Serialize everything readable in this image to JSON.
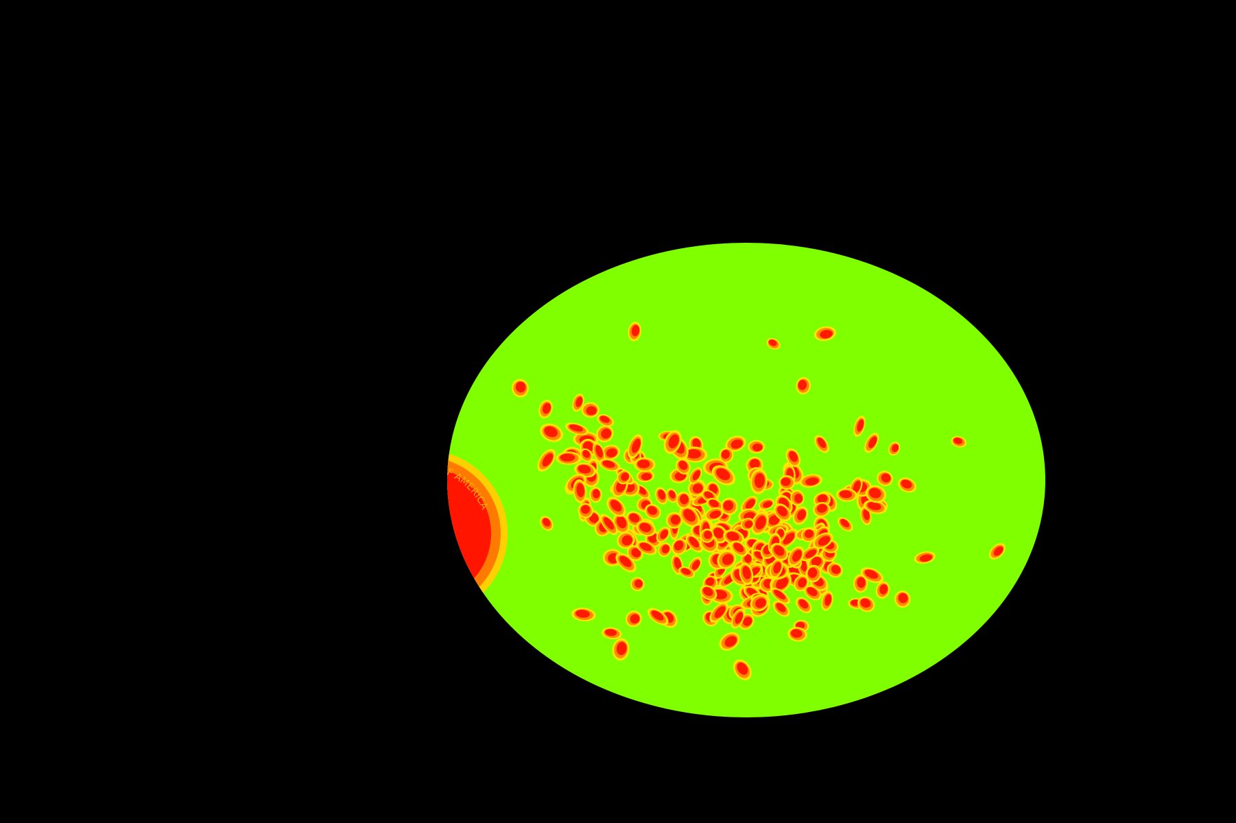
{
  "image": {
    "description_free": true,
    "colors": {
      "background": "#000000",
      "dish": "#7fff00",
      "colony_core": "#ff1a00",
      "colony_mid": "#ff8a00",
      "colony_rim": "#ffe600",
      "coin_core": "#ff1500",
      "coin_ring": "#ff7a00",
      "coin_rim": "#ffd000"
    },
    "coin_inscription": "OF AMERICA",
    "objects": [
      "petri-dish",
      "bacterial-colonies",
      "coin"
    ]
  }
}
